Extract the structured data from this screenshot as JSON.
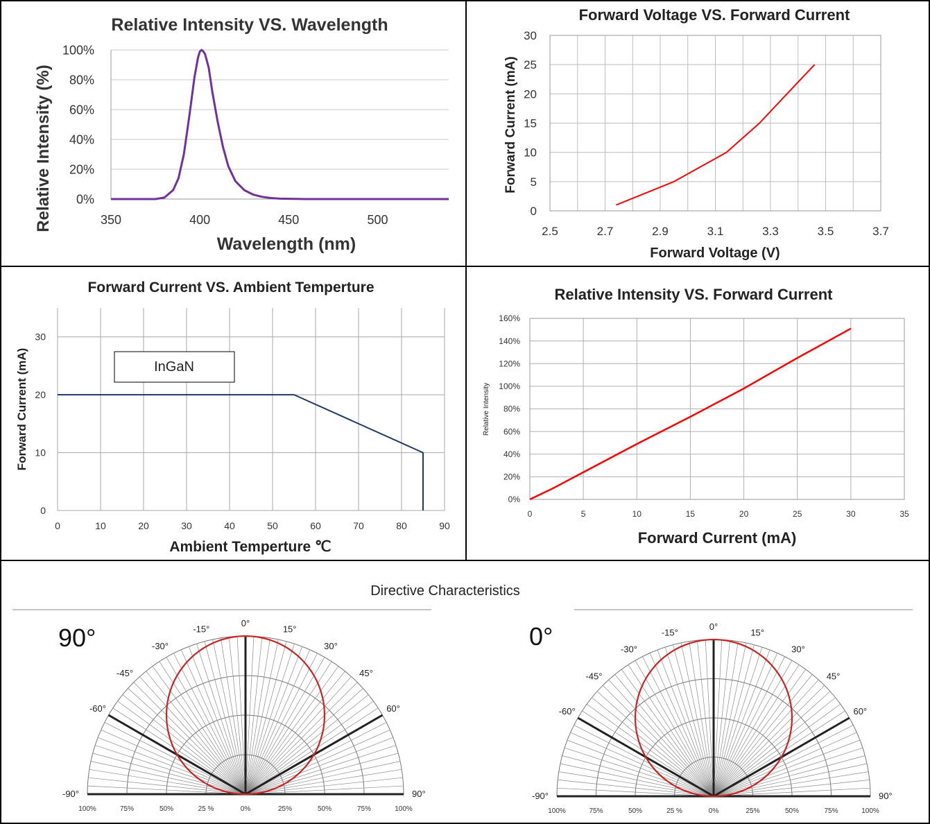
{
  "chart_data": [
    {
      "id": "spectrum",
      "type": "line",
      "title": "Relative Intensity  VS. Wavelength",
      "xlabel": "Wavelength (nm)",
      "ylabel": "Relative Intensity (%)",
      "xlim": [
        350,
        540
      ],
      "ylim": [
        0,
        100
      ],
      "x_ticks": [
        "350",
        "400",
        "450",
        "500"
      ],
      "x_tick_values": [
        350,
        400,
        450,
        500
      ],
      "y_ticks": [
        "0%",
        "20%",
        "40%",
        "60%",
        "80%",
        "100%"
      ],
      "y_tick_values": [
        0,
        20,
        40,
        60,
        80,
        100
      ],
      "grid": "horizontal",
      "series": [
        {
          "color": "#7030a0",
          "x": [
            350,
            375,
            380,
            385,
            388,
            391,
            394,
            397,
            399,
            400,
            401,
            402,
            403,
            405,
            407,
            410,
            413,
            416,
            420,
            425,
            430,
            435,
            440,
            445,
            460,
            540
          ],
          "y": [
            0,
            0,
            1,
            6,
            14,
            30,
            55,
            82,
            95,
            99,
            100,
            99,
            97,
            88,
            72,
            52,
            35,
            22,
            12,
            6,
            3,
            1.5,
            0.7,
            0.3,
            0,
            0
          ]
        }
      ]
    },
    {
      "id": "iv",
      "type": "line",
      "title": "Forward Voltage VS. Forward Current",
      "xlabel": "Forward Voltage (V)",
      "ylabel": "Forward Current (mA)",
      "xlim": [
        2.5,
        3.7
      ],
      "ylim": [
        0,
        30
      ],
      "x_ticks": [
        "2.5",
        "2.7",
        "2.9",
        "3.1",
        "3.3",
        "3.5",
        "3.7"
      ],
      "x_tick_values": [
        2.5,
        2.7,
        2.9,
        3.1,
        3.3,
        3.5,
        3.7
      ],
      "y_ticks": [
        "0",
        "5",
        "10",
        "15",
        "20",
        "25",
        "30"
      ],
      "y_tick_values": [
        0,
        5,
        10,
        15,
        20,
        25,
        30
      ],
      "x_grid_step": 0.1,
      "grid": "both",
      "series": [
        {
          "color": "#ff0000",
          "x": [
            2.74,
            2.95,
            3.14,
            3.26,
            3.36,
            3.46
          ],
          "y": [
            1,
            5,
            10,
            15,
            20,
            25
          ]
        }
      ]
    },
    {
      "id": "derating",
      "type": "line",
      "title": "Forward Current  VS. Ambient Temperture",
      "xlabel": "Ambient Temperture ℃",
      "ylabel": "Forward Current (mA)",
      "xlim": [
        0,
        90
      ],
      "ylim": [
        0,
        35
      ],
      "x_ticks": [
        "0",
        "10",
        "20",
        "30",
        "40",
        "50",
        "60",
        "70",
        "80",
        "90"
      ],
      "x_tick_values": [
        0,
        10,
        20,
        30,
        40,
        50,
        60,
        70,
        80,
        90
      ],
      "y_ticks": [
        "0",
        "10",
        "20",
        "30"
      ],
      "y_tick_values": [
        0,
        10,
        20,
        30
      ],
      "grid": "both",
      "annotation": "InGaN",
      "series": [
        {
          "color": "#1f3864",
          "x": [
            0,
            55,
            85,
            85
          ],
          "y": [
            20,
            20,
            10,
            0
          ]
        }
      ]
    },
    {
      "id": "intensity_current",
      "type": "line",
      "title": "Relative Intensity VS. Forward Current",
      "xlabel": "Forward Current (mA)",
      "ylabel": "Relative Intensity",
      "xlim": [
        0,
        35
      ],
      "ylim": [
        0,
        160
      ],
      "x_ticks": [
        "0",
        "5",
        "10",
        "15",
        "20",
        "25",
        "30",
        "35"
      ],
      "x_tick_values": [
        0,
        5,
        10,
        15,
        20,
        25,
        30,
        35
      ],
      "y_ticks": [
        "0%",
        "20%",
        "40%",
        "60%",
        "80%",
        "100%",
        "120%",
        "140%",
        "160%"
      ],
      "y_tick_values": [
        0,
        20,
        40,
        60,
        80,
        100,
        120,
        140,
        160
      ],
      "grid": "both",
      "series": [
        {
          "color": "#ff0000",
          "x": [
            0,
            2,
            5,
            10,
            15,
            20,
            25,
            30
          ],
          "y": [
            0,
            9,
            24,
            49,
            73,
            98,
            125,
            151
          ]
        }
      ]
    },
    {
      "id": "polar_90",
      "type": "polar",
      "label": "90°",
      "angle_labels": [
        "-90°",
        "-60°",
        "-45°",
        "-30°",
        "-15°",
        "0°",
        "15°",
        "30°",
        "45°",
        "60°",
        "90°"
      ],
      "angle_values": [
        -90,
        -60,
        -45,
        -30,
        -15,
        0,
        15,
        30,
        45,
        60,
        90
      ],
      "radial_ticks": [
        "100%",
        "75%",
        "50%",
        "25 %",
        "0%",
        "25%",
        "50%",
        "75%",
        "100%"
      ],
      "pattern": "cosine",
      "color": "#cc2222"
    },
    {
      "id": "polar_0",
      "type": "polar",
      "label": "0°",
      "angle_labels": [
        "-90°",
        "-60°",
        "-45°",
        "-30°",
        "-15°",
        "0°",
        "15°",
        "30°",
        "45°",
        "60°",
        "90°"
      ],
      "angle_values": [
        -90,
        -60,
        -45,
        -30,
        -15,
        0,
        15,
        30,
        45,
        60,
        90
      ],
      "radial_ticks": [
        "100%",
        "75%",
        "50%",
        "25 %",
        "0%",
        "25%",
        "50%",
        "75%",
        "100%"
      ],
      "pattern": "cosine",
      "color": "#cc2222"
    }
  ],
  "directive": {
    "title": "Directive Characteristics"
  }
}
